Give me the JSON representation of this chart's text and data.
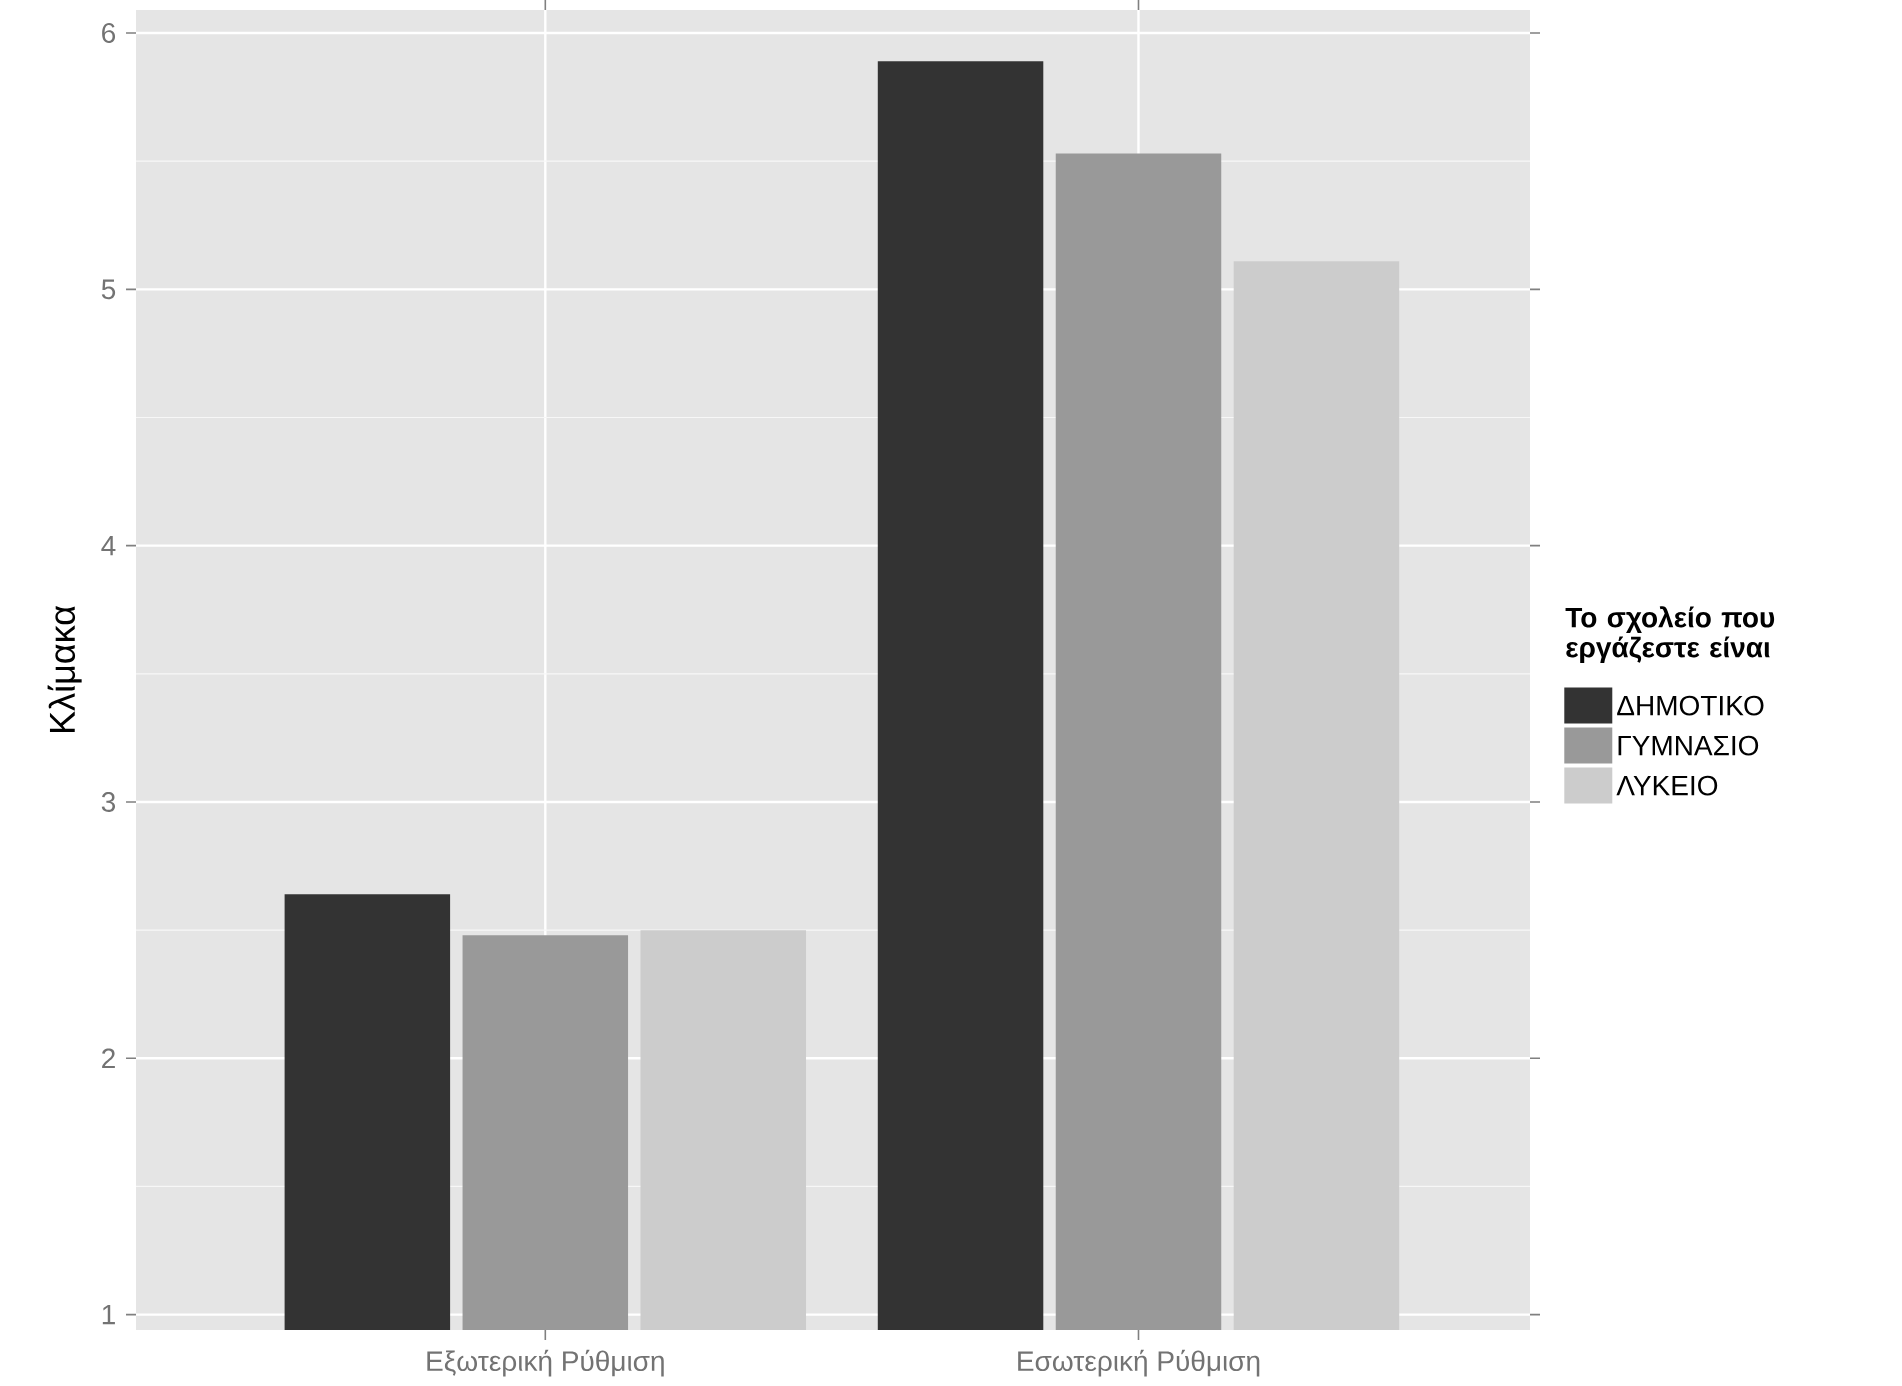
{
  "chart_data": {
    "type": "bar",
    "ylabel": "Κλίμακα",
    "legend_title": "Το σχολείο που εργάζεστε είναι",
    "categories": [
      "Εξωτερική Ρύθμιση",
      "Εσωτερική Ρύθμιση"
    ],
    "series": [
      {
        "name": "ΔΗΜΟΤΙΚΟ",
        "color": "#333333",
        "values": [
          2.64,
          5.89
        ]
      },
      {
        "name": "ΓΥΜΝΑΣΙΟ",
        "color": "#999999",
        "values": [
          2.48,
          5.53
        ]
      },
      {
        "name": "ΛΥΚΕΙΟ",
        "color": "#cccccc",
        "values": [
          2.5,
          5.11
        ]
      }
    ],
    "ylim": [
      0.94,
      6.09
    ],
    "yticks": [
      1,
      2,
      3,
      4,
      5,
      6
    ],
    "grid": true,
    "legend": "right"
  }
}
